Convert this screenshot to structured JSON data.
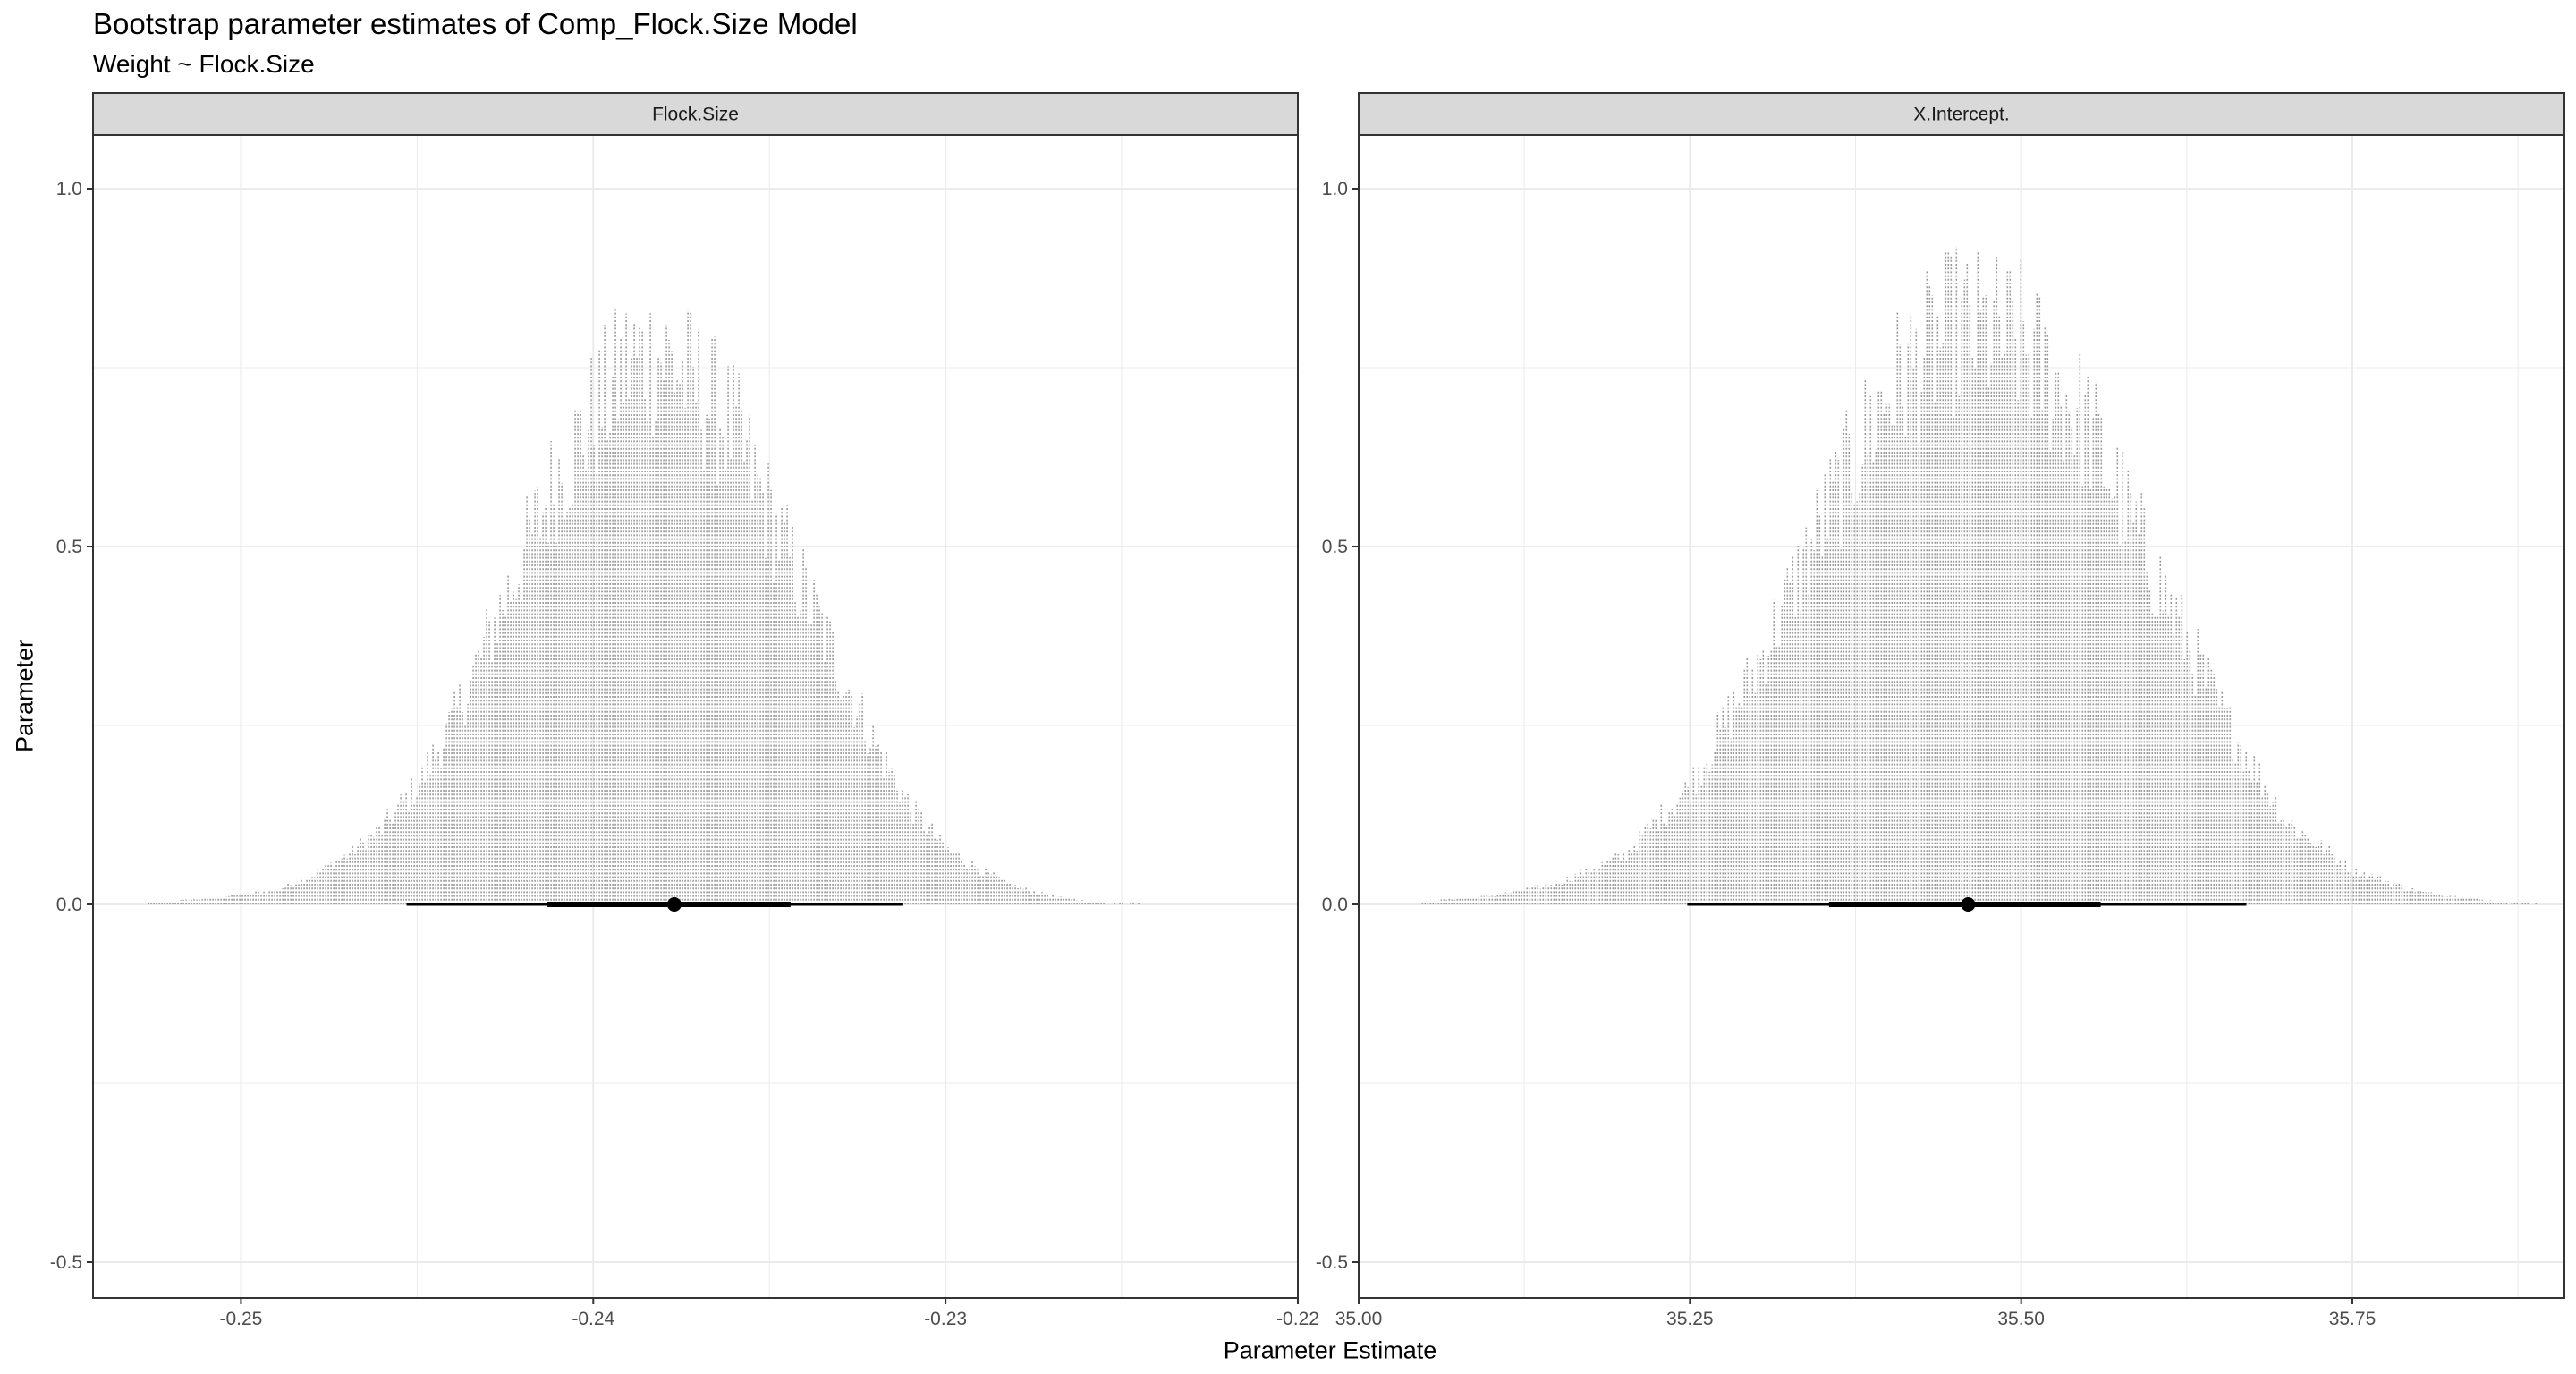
{
  "title": "Bootstrap parameter estimates of Comp_Flock.Size Model",
  "subtitle": "Weight ~ Flock.Size",
  "chart_data": {
    "type": "dotplot",
    "xlabel": "Parameter Estimate",
    "ylabel": "Parameter",
    "y_range": [
      -0.55,
      1.0
    ],
    "y_ticks": [
      -0.5,
      0.0,
      0.5,
      1.0
    ],
    "y_tick_labels": [
      "-0.5",
      "0.0",
      "0.5",
      "1.0"
    ],
    "grid": "on",
    "legend": "none",
    "colors": {
      "dots": "#9a9a9a",
      "interval": "#000000",
      "strip_fill": "#d9d9d9",
      "grid": "#ebebeb"
    },
    "panels": [
      {
        "name": "Flock.Size",
        "x_range": [
          -0.2542,
          -0.22
        ],
        "x_ticks": [
          -0.25,
          -0.24,
          -0.23,
          -0.22
        ],
        "x_tick_labels": [
          "-0.25",
          "-0.24",
          "-0.23",
          "-0.22"
        ],
        "point_estimate": -0.2377,
        "interval_66": [
          -0.2413,
          -0.2344
        ],
        "interval_95": [
          -0.2453,
          -0.2312
        ],
        "distribution_profile": {
          "x": [
            -0.2527,
            -0.251,
            -0.249,
            -0.248,
            -0.247,
            -0.246,
            -0.245,
            -0.244,
            -0.243,
            -0.242,
            -0.241,
            -0.24,
            -0.239,
            -0.238,
            -0.237,
            -0.236,
            -0.235,
            -0.234,
            -0.233,
            -0.232,
            -0.231,
            -0.23,
            -0.229,
            -0.228,
            -0.227,
            -0.226,
            -0.2245
          ],
          "density": [
            0.003,
            0.008,
            0.02,
            0.04,
            0.07,
            0.11,
            0.17,
            0.26,
            0.38,
            0.5,
            0.62,
            0.7,
            0.78,
            0.79,
            0.74,
            0.68,
            0.56,
            0.45,
            0.34,
            0.23,
            0.14,
            0.08,
            0.05,
            0.025,
            0.012,
            0.005,
            0.003
          ]
        }
      },
      {
        "name": "X.Intercept.",
        "x_range": [
          35.0,
          35.91
        ],
        "x_ticks": [
          35.0,
          35.25,
          35.5,
          35.75
        ],
        "x_tick_labels": [
          "35.00",
          "35.25",
          "35.50",
          "35.75"
        ],
        "point_estimate": 35.46,
        "interval_66": [
          35.355,
          35.56
        ],
        "interval_95": [
          35.248,
          35.67
        ],
        "distribution_profile": {
          "x": [
            35.04,
            35.1,
            35.15,
            35.2,
            35.25,
            35.3,
            35.35,
            35.4,
            35.45,
            35.5,
            35.55,
            35.6,
            35.65,
            35.7,
            35.75,
            35.8,
            35.85,
            35.89
          ],
          "density": [
            0.003,
            0.012,
            0.03,
            0.07,
            0.17,
            0.34,
            0.55,
            0.74,
            0.83,
            0.81,
            0.69,
            0.48,
            0.28,
            0.12,
            0.05,
            0.018,
            0.006,
            0.003
          ]
        }
      }
    ]
  }
}
